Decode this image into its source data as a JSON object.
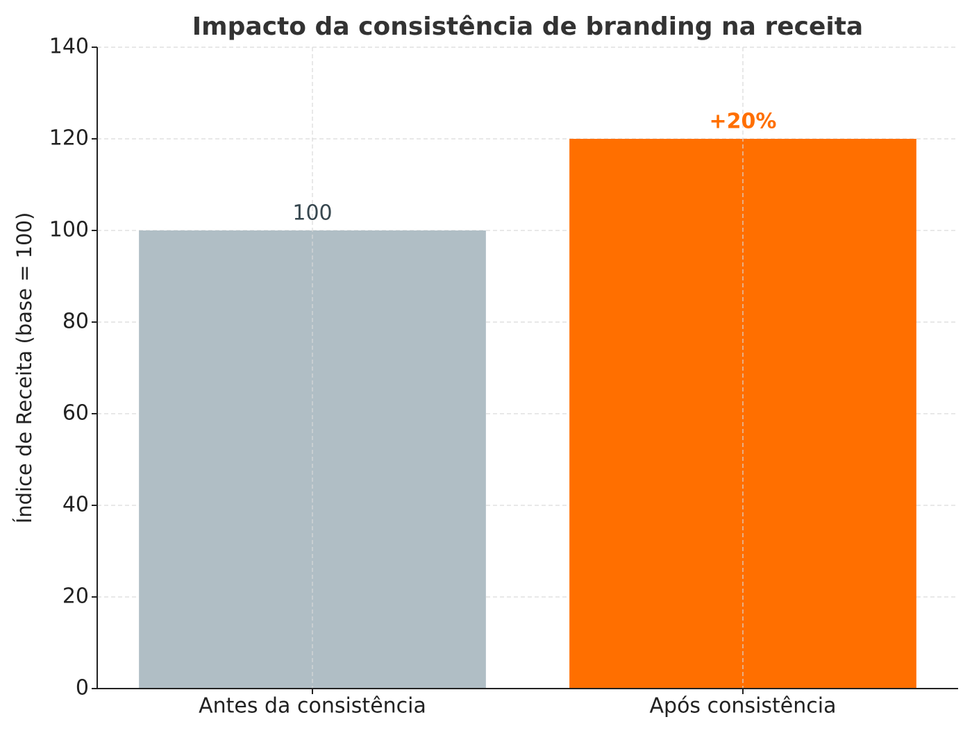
{
  "chart_data": {
    "type": "bar",
    "title": "Impacto da consistência de branding na receita",
    "y_label": "Índice de Receita (base = 100)",
    "categories": [
      "Antes da consistência",
      "Após consistência"
    ],
    "values": [
      100,
      120
    ],
    "value_labels": [
      "100",
      null
    ],
    "colors": [
      "#b0bec5",
      "#ff6f00"
    ],
    "annotation": {
      "text": "+20%",
      "category": 1,
      "color": "#ff6f00"
    },
    "ylim": [
      0,
      140
    ],
    "yticks": [
      0,
      20,
      40,
      60,
      80,
      100,
      120,
      140
    ],
    "grid": true
  }
}
